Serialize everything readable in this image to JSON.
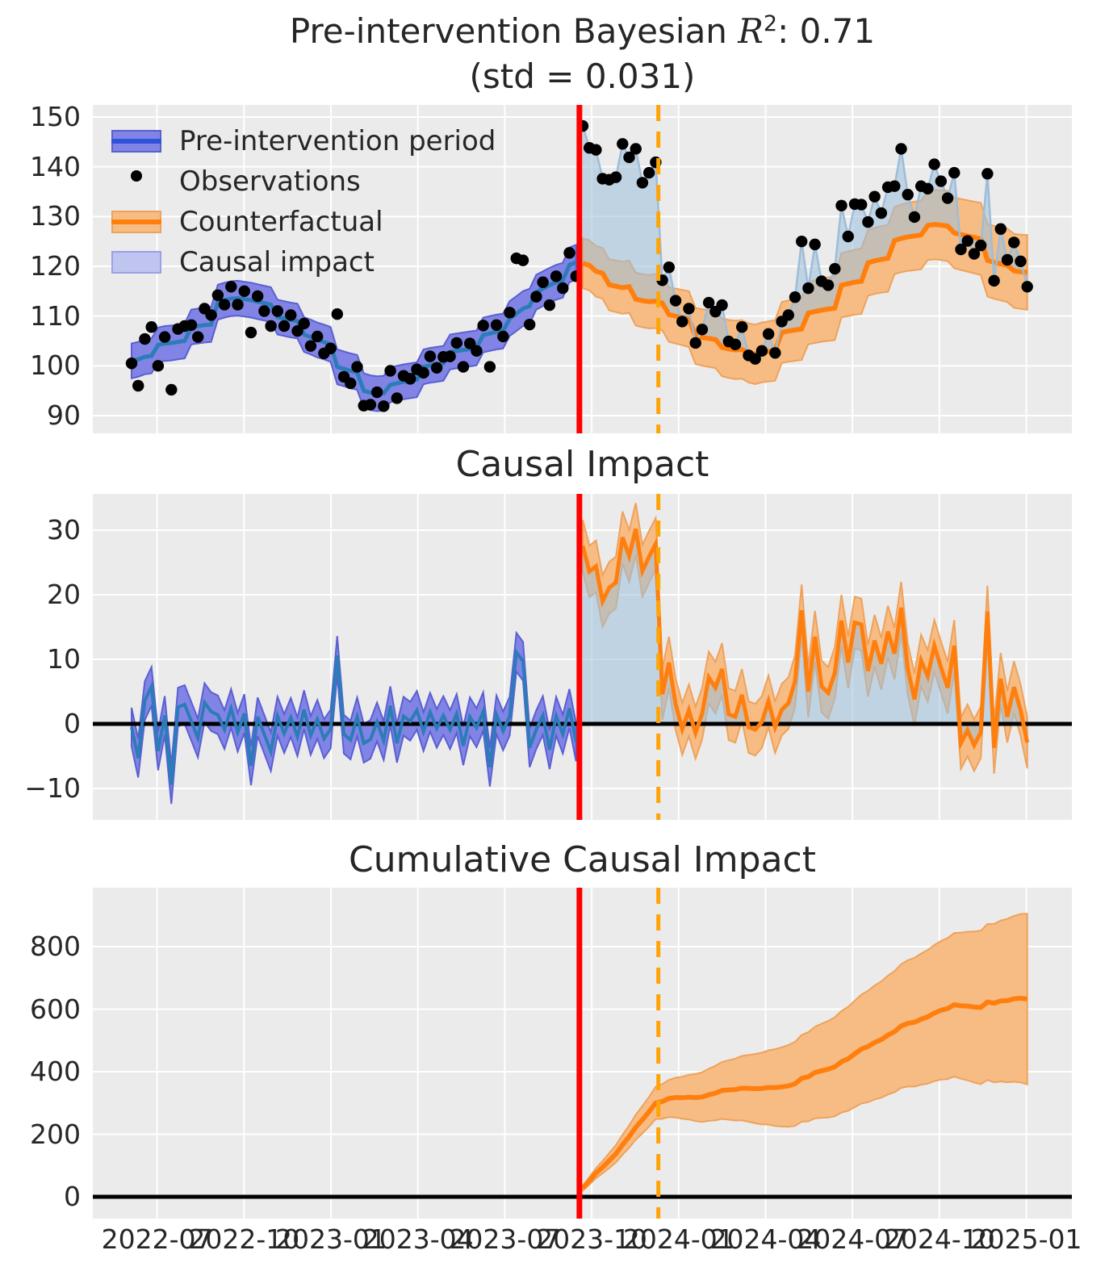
{
  "figure": {
    "title_prefix": "Pre-intervention Bayesian ",
    "title_math": "R",
    "title_sup": "2",
    "title_suffix": ": 0.71",
    "subtitle": "(std = 0.031)"
  },
  "panel_titles": {
    "impact": "Causal Impact",
    "cumulative": "Cumulative Causal Impact"
  },
  "x_axis": {
    "tick_labels": [
      "2022-07",
      "2022-10",
      "2023-01",
      "2023-04",
      "2023-07",
      "2023-10",
      "2024-01",
      "2024-04",
      "2024-07",
      "2024-10",
      "2025-01"
    ]
  },
  "y_axes": {
    "observed_ticks": [
      90,
      100,
      110,
      120,
      130,
      140,
      150
    ],
    "impact_ticks": [
      -10,
      0,
      10,
      20,
      30
    ],
    "cumulative_ticks": [
      0,
      200,
      400,
      600,
      800
    ]
  },
  "legend": {
    "items": [
      {
        "label": "Pre-intervention period",
        "type": "band-line",
        "fill": "#8184e4",
        "edge": "#5a5fd3",
        "line": "#2f52d8"
      },
      {
        "label": "Observations",
        "type": "dot",
        "color": "#000000"
      },
      {
        "label": "Counterfactual",
        "type": "band-line",
        "fill": "#f7bc84",
        "edge": "#eea25b",
        "line": "#ff7f0e"
      },
      {
        "label": "Causal impact",
        "type": "patch",
        "fill": "#c0c5f0",
        "edge": "#9aa0e8"
      }
    ]
  },
  "colors": {
    "panel_bg": "#ebebeb",
    "grid": "#ffffff",
    "pre_band_fill": "#8184e4",
    "pre_band_edge": "#5a5fd3",
    "pre_mean_line": "#2b7cb8",
    "observations": "#000000",
    "observations_line": "#9dbdd8",
    "counterfactual_line": "#ff7f0e",
    "counterfactual_band_fill": "#f7bc84",
    "counterfactual_band_edge": "#eea25b",
    "causal_impact_fill": "#9cc0dc",
    "intervention_line": "#ff0000",
    "secondary_line": "#ffa408",
    "zero_line": "#000000"
  },
  "chart_data": {
    "type": "line",
    "x_start_date": "2022-06-05",
    "x_step_days": 7,
    "intervention_date": "2023-09-20",
    "secondary_marker_date": "2023-12-10",
    "intervention_index": 67.5,
    "secondary_marker_index": 79.4,
    "panel_observed": {
      "ylim": [
        86.4,
        152.4
      ],
      "pre_mean": [
        101.0,
        101.3,
        101.8,
        102.0,
        104.2,
        104.5,
        104.6,
        104.8,
        105.0,
        107.8,
        108.0,
        108.2,
        108.3,
        112.8,
        113.2,
        113.5,
        113.6,
        113.4,
        113.2,
        112.9,
        112.6,
        112.3,
        109.8,
        109.5,
        109.2,
        109.0,
        106.3,
        105.8,
        105.2,
        104.8,
        104.3,
        99.8,
        99.4,
        99.0,
        98.7,
        95.0,
        94.6,
        94.4,
        94.5,
        96.2,
        96.5,
        96.8,
        97.0,
        97.2,
        99.8,
        100.1,
        100.3,
        100.5,
        102.8,
        103.0,
        103.2,
        103.4,
        103.6,
        106.2,
        106.5,
        106.8,
        107.0,
        109.5,
        110.5,
        111.5,
        112.0,
        114.8,
        115.5,
        116.2,
        116.8,
        117.2,
        120.3,
        120.8
      ],
      "pre_hdi_halfwidth": 3.5,
      "observations_pre": [
        100.5,
        96.0,
        105.4,
        107.8,
        100.0,
        105.8,
        95.2,
        107.4,
        108.0,
        108.2,
        105.8,
        111.5,
        110.2,
        114.2,
        112.3,
        115.9,
        112.3,
        115.0,
        106.7,
        114.0,
        111.0,
        108.0,
        111.0,
        108.0,
        110.2,
        107.0,
        108.5,
        104.0,
        105.9,
        102.5,
        103.5,
        110.4,
        97.8,
        96.5,
        99.8,
        92.0,
        92.2,
        94.7,
        91.9,
        99.0,
        93.5,
        98.0,
        97.4,
        99.3,
        98.6,
        101.9,
        99.6,
        101.8,
        101.9,
        104.6,
        99.8,
        104.5,
        103.0,
        108.1,
        99.8,
        108.2,
        105.9,
        110.7,
        121.6,
        121.2,
        108.3,
        113.9,
        116.8,
        112.2,
        118.0,
        115.6,
        122.7,
        118.0
      ],
      "counterfactual_mean": [
        120.6,
        120.2,
        119.0,
        118.6,
        116.3,
        116.0,
        115.7,
        115.9,
        113.4,
        113.1,
        112.9,
        113.0,
        112.6,
        110.3,
        110.0,
        109.7,
        109.4,
        106.0,
        105.7,
        105.5,
        105.3,
        103.7,
        103.4,
        103.2,
        103.3,
        102.6,
        102.3,
        102.7,
        102.9,
        103.1,
        106.7,
        107.0,
        107.2,
        107.4,
        110.6,
        110.9,
        111.2,
        111.4,
        111.6,
        116.2,
        116.5,
        116.8,
        117.0,
        120.7,
        121.1,
        121.4,
        121.6,
        125.2,
        125.6,
        125.9,
        126.1,
        126.3,
        128.2,
        128.4,
        128.3,
        128.1,
        126.7,
        126.4,
        126.1,
        125.8,
        125.5,
        121.2,
        120.8,
        120.5,
        120.2,
        119.1,
        118.9,
        118.8
      ],
      "cf_hdi_halfwidth_start": 5.0,
      "cf_hdi_halfwidth_end": 7.5,
      "observations_post": [
        148.2,
        143.8,
        143.4,
        137.6,
        137.4,
        137.9,
        144.6,
        141.9,
        143.6,
        136.8,
        138.8,
        140.9,
        117.2,
        119.8,
        113.1,
        108.9,
        111.5,
        104.6,
        107.3,
        112.7,
        110.9,
        112.2,
        104.9,
        104.3,
        107.8,
        102.1,
        101.4,
        103.0,
        106.4,
        102.6,
        108.9,
        110.2,
        113.8,
        125.0,
        115.6,
        124.4,
        117.0,
        116.2,
        119.5,
        132.2,
        126.0,
        132.5,
        132.4,
        128.9,
        134.0,
        130.7,
        135.9,
        136.1,
        143.6,
        134.4,
        129.9,
        136.1,
        135.6,
        140.5,
        137.1,
        133.7,
        138.8,
        123.4,
        125.1,
        122.5,
        124.2,
        138.6,
        117.1,
        127.5,
        121.3,
        124.8,
        121.0,
        115.9
      ]
    },
    "panel_impact": {
      "ylim": [
        -14.9,
        35.6
      ],
      "note": "impact = observations minus (pre mean / counterfactual mean)",
      "pre_band_halfwidth": 3.0,
      "post_band_halfwidth": 4.0
    },
    "panel_cumulative": {
      "ylim": [
        -64,
        988
      ],
      "note": "cumulative sum of post-intervention impact",
      "band_halfwidth_start": 8,
      "band_halfwidth_end": 273
    }
  }
}
